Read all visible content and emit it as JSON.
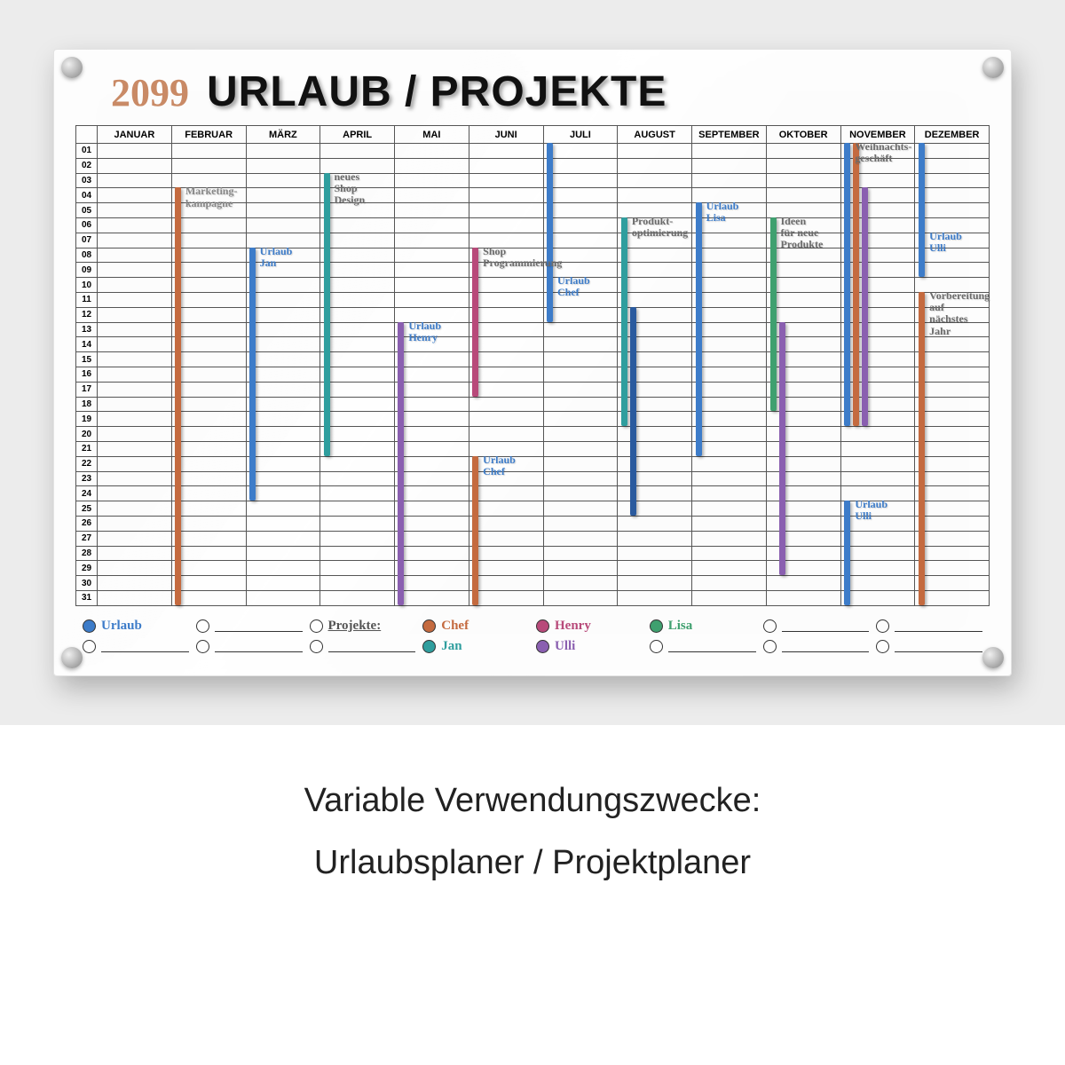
{
  "page": {
    "bg": "#ececec",
    "caption_line1": "Variable Verwendungszwecke:",
    "caption_line2": "Urlaubsplaner / Projektplaner"
  },
  "board": {
    "year": "2099",
    "year_color": "#c98a66",
    "title": "URLAUB / PROJEKTE",
    "months": [
      "JANUAR",
      "FEBRUAR",
      "MÄRZ",
      "APRIL",
      "MAI",
      "JUNI",
      "JULI",
      "AUGUST",
      "SEPTEMBER",
      "OKTOBER",
      "NOVEMBER",
      "DEZEMBER"
    ],
    "days": 31,
    "row_h": 16.8,
    "colors": {
      "blue": "#3d7cc9",
      "orange": "#c46a3f",
      "teal": "#2f9e9e",
      "purple": "#8a5fb0",
      "magenta": "#b84a7a",
      "green": "#3fa06f",
      "gray": "#6b6b6b",
      "darkblue": "#2a5a9e"
    },
    "bars": [
      {
        "month": 1,
        "slot": 0,
        "start": 4,
        "end": 31,
        "color": "#c46a3f"
      },
      {
        "month": 2,
        "slot": 0,
        "start": 8,
        "end": 24,
        "color": "#3d7cc9"
      },
      {
        "month": 3,
        "slot": 0,
        "start": 3,
        "end": 21,
        "color": "#2f9e9e"
      },
      {
        "month": 4,
        "slot": 0,
        "start": 13,
        "end": 31,
        "color": "#8a5fb0"
      },
      {
        "month": 5,
        "slot": 0,
        "start": 8,
        "end": 17,
        "color": "#b84a7a"
      },
      {
        "month": 5,
        "slot": 0,
        "start": 22,
        "end": 31,
        "color": "#c46a3f"
      },
      {
        "month": 6,
        "slot": 0,
        "start": 1,
        "end": 12,
        "color": "#3d7cc9"
      },
      {
        "month": 7,
        "slot": 0,
        "start": 6,
        "end": 19,
        "color": "#2f9e9e"
      },
      {
        "month": 7,
        "slot": 1,
        "start": 12,
        "end": 25,
        "color": "#2a5a9e"
      },
      {
        "month": 8,
        "slot": 0,
        "start": 5,
        "end": 21,
        "color": "#3d7cc9"
      },
      {
        "month": 9,
        "slot": 0,
        "start": 6,
        "end": 18,
        "color": "#3fa06f"
      },
      {
        "month": 9,
        "slot": 1,
        "start": 13,
        "end": 29,
        "color": "#8a5fb0"
      },
      {
        "month": 10,
        "slot": 0,
        "start": 1,
        "end": 19,
        "color": "#3d7cc9"
      },
      {
        "month": 10,
        "slot": 1,
        "start": 1,
        "end": 19,
        "color": "#c46a3f"
      },
      {
        "month": 10,
        "slot": 2,
        "start": 4,
        "end": 19,
        "color": "#8a5fb0"
      },
      {
        "month": 10,
        "slot": 0,
        "start": 25,
        "end": 31,
        "color": "#3d7cc9"
      },
      {
        "month": 11,
        "slot": 0,
        "start": 1,
        "end": 9,
        "color": "#3d7cc9"
      },
      {
        "month": 11,
        "slot": 0,
        "start": 11,
        "end": 31,
        "color": "#c46a3f"
      }
    ],
    "notes": [
      {
        "month": 1,
        "row": 4,
        "text": "Marketing-\nkampagne",
        "color": "#888"
      },
      {
        "month": 2,
        "row": 8,
        "text": "Urlaub\nJan",
        "color": "#3d7cc9"
      },
      {
        "month": 3,
        "row": 3,
        "text": "neues\nShop\nDesign",
        "color": "#6b6b6b"
      },
      {
        "month": 4,
        "row": 13,
        "text": "Urlaub\nHenry",
        "color": "#3d7cc9"
      },
      {
        "month": 5,
        "row": 8,
        "text": "Shop\nProgrammierung",
        "color": "#6b6b6b"
      },
      {
        "month": 5,
        "row": 22,
        "text": "Urlaub\nChef",
        "color": "#3d7cc9"
      },
      {
        "month": 6,
        "row": 10,
        "text": "Urlaub\nChef",
        "color": "#3d7cc9"
      },
      {
        "month": 7,
        "row": 6,
        "text": "Produkt-\noptimierung",
        "color": "#6b6b6b"
      },
      {
        "month": 8,
        "row": 5,
        "text": "Urlaub\nLisa",
        "color": "#3d7cc9"
      },
      {
        "month": 9,
        "row": 6,
        "text": "Ideen\nfür neue\nProdukte",
        "color": "#6b6b6b"
      },
      {
        "month": 10,
        "row": 1,
        "text": "Weihnachts-\ngeschäft",
        "color": "#6b6b6b"
      },
      {
        "month": 10,
        "row": 25,
        "text": "Urlaub\nUlli",
        "color": "#3d7cc9"
      },
      {
        "month": 11,
        "row": 7,
        "text": "Urlaub\nUlli",
        "color": "#3d7cc9"
      },
      {
        "month": 11,
        "row": 11,
        "text": "Vorbereitung\nauf\nnächstes\nJahr",
        "color": "#6b6b6b"
      }
    ],
    "legend_row1": [
      {
        "label": "Urlaub",
        "fill": "#3d7cc9",
        "text": "#3d7cc9"
      },
      {
        "label": "",
        "fill": ""
      },
      {
        "label": "Projekte:",
        "fill": "",
        "text": "#555",
        "underline": true
      },
      {
        "label": "Chef",
        "fill": "#c46a3f",
        "text": "#c46a3f"
      },
      {
        "label": "Henry",
        "fill": "#b84a7a",
        "text": "#b84a7a"
      },
      {
        "label": "Lisa",
        "fill": "#3fa06f",
        "text": "#3fa06f"
      },
      {
        "label": "",
        "fill": ""
      },
      {
        "label": "",
        "fill": ""
      }
    ],
    "legend_row2": [
      {
        "label": "",
        "fill": ""
      },
      {
        "label": "",
        "fill": ""
      },
      {
        "label": "",
        "fill": ""
      },
      {
        "label": "Jan",
        "fill": "#2f9e9e",
        "text": "#2f9e9e"
      },
      {
        "label": "Ulli",
        "fill": "#8a5fb0",
        "text": "#8a5fb0"
      },
      {
        "label": "",
        "fill": ""
      },
      {
        "label": "",
        "fill": ""
      },
      {
        "label": "",
        "fill": ""
      }
    ]
  }
}
